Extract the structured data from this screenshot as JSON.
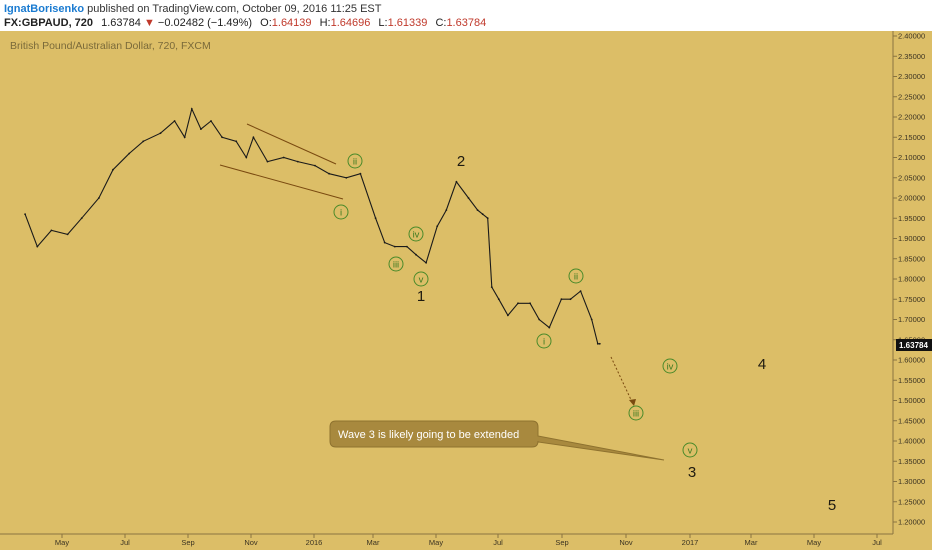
{
  "header": {
    "author": "IgnatBorisenko",
    "published_text": "published on TradingView.com, October 09, 2016 11:25 EST",
    "symbol": "FX:GBPAUD, 720",
    "last": "1.63784",
    "change": "−0.02482 (−1.49%)",
    "open_label": "O:",
    "open": "1.64139",
    "high_label": "H:",
    "high": "1.64696",
    "low_label": "L:",
    "low": "1.61339",
    "close_label": "C:",
    "close": "1.63784"
  },
  "chart_data": {
    "type": "line",
    "subtitle": "British Pound/Australian Dollar, 720, FXCM",
    "x_ticks": [
      "May",
      "Jul",
      "Sep",
      "Nov",
      "2016",
      "Mar",
      "May",
      "Jul",
      "Sep",
      "Nov",
      "2017",
      "Mar",
      "May",
      "Jul"
    ],
    "y_ticks": [
      "2.40000",
      "2.35000",
      "2.30000",
      "2.25000",
      "2.20000",
      "2.15000",
      "2.10000",
      "2.05000",
      "2.00000",
      "1.95000",
      "1.90000",
      "1.85000",
      "1.80000",
      "1.75000",
      "1.70000",
      "1.65000",
      "1.60000",
      "1.55000",
      "1.50000",
      "1.45000",
      "1.40000",
      "1.35000",
      "1.30000",
      "1.25000",
      "1.20000"
    ],
    "ylim": [
      1.18,
      2.41
    ],
    "last_price": "1.63784",
    "series": [
      {
        "x": [
          "2015-03-20",
          "2015-04-01",
          "2015-04-15",
          "2015-05-01",
          "2015-05-15",
          "2015-06-01",
          "2015-06-15",
          "2015-07-01",
          "2015-07-15",
          "2015-08-01",
          "2015-08-15",
          "2015-08-25",
          "2015-09-01",
          "2015-09-10",
          "2015-09-20",
          "2015-10-01",
          "2015-10-15",
          "2015-10-25",
          "2015-11-01",
          "2015-11-15",
          "2015-12-01",
          "2015-12-15",
          "2016-01-01",
          "2016-01-15",
          "2016-02-01",
          "2016-02-15",
          "2016-03-01",
          "2016-03-10",
          "2016-03-20",
          "2016-04-01",
          "2016-04-10",
          "2016-04-20",
          "2016-05-01",
          "2016-05-10",
          "2016-05-20",
          "2016-06-01",
          "2016-06-10",
          "2016-06-15",
          "2016-06-20",
          "2016-06-24",
          "2016-07-01",
          "2016-07-10",
          "2016-07-20",
          "2016-08-01",
          "2016-08-10",
          "2016-08-20",
          "2016-09-01",
          "2016-09-10",
          "2016-09-20",
          "2016-10-01",
          "2016-10-07",
          "2016-10-09"
        ],
        "values": [
          1.96,
          1.88,
          1.92,
          1.91,
          1.95,
          2.0,
          2.07,
          2.11,
          2.14,
          2.16,
          2.19,
          2.15,
          2.22,
          2.17,
          2.19,
          2.15,
          2.14,
          2.1,
          2.15,
          2.09,
          2.1,
          2.09,
          2.08,
          2.06,
          2.05,
          2.06,
          1.95,
          1.89,
          1.88,
          1.88,
          1.86,
          1.84,
          1.93,
          1.97,
          2.04,
          2.0,
          1.97,
          1.96,
          1.95,
          1.78,
          1.75,
          1.71,
          1.74,
          1.74,
          1.7,
          1.68,
          1.75,
          1.75,
          1.77,
          1.7,
          1.64,
          1.64
        ]
      }
    ],
    "grid": false,
    "annotations": {
      "major_waves": [
        "1",
        "2",
        "3",
        "4",
        "5"
      ],
      "minor_waves": [
        "i",
        "ii",
        "iii",
        "iv",
        "v",
        "i",
        "ii",
        "iii",
        "iv",
        "v"
      ],
      "callout": "Wave 3 is likely going to be extended"
    }
  }
}
